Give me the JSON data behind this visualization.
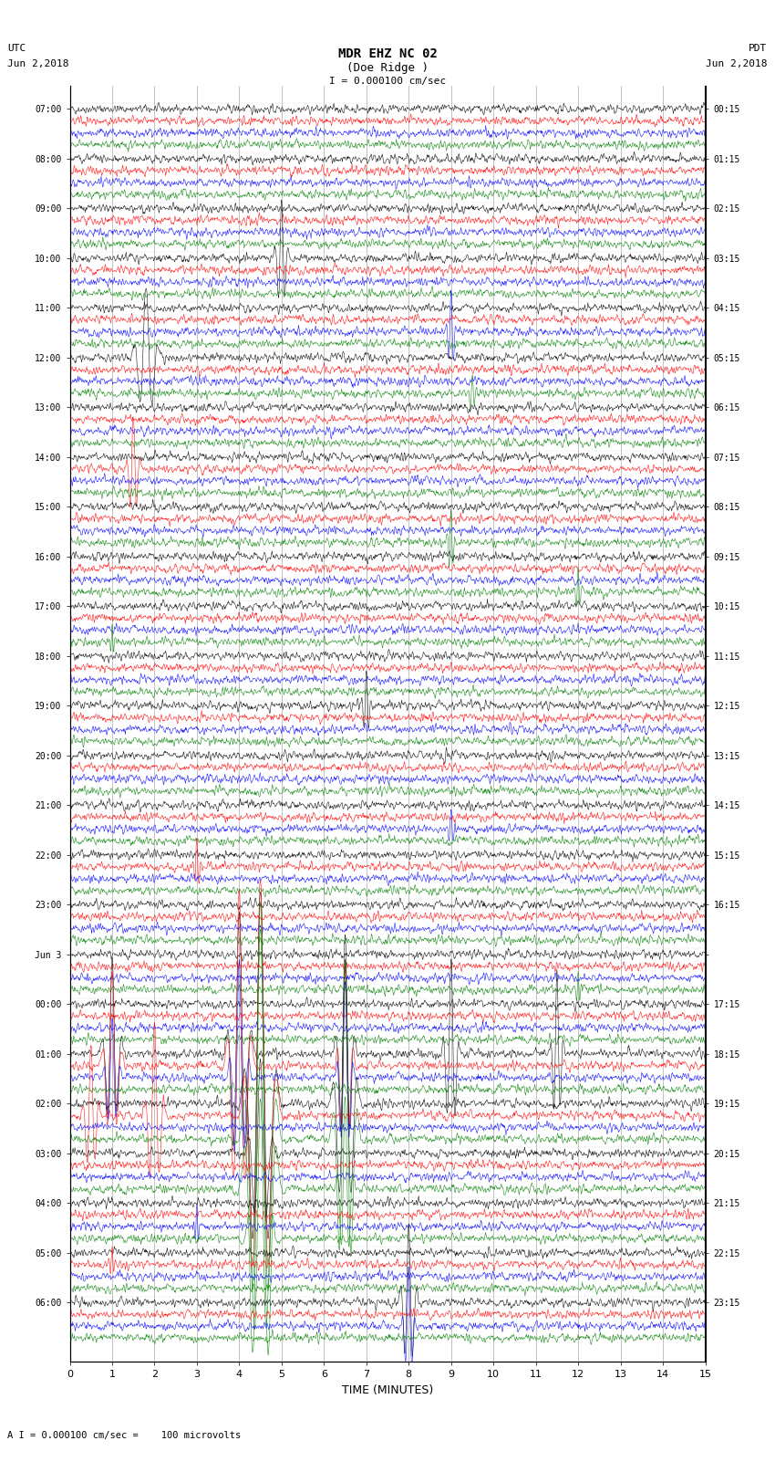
{
  "title_line1": "MDR EHZ NC 02",
  "title_line2": "(Doe Ridge )",
  "scale_text": "I = 0.000100 cm/sec",
  "utc_label": "UTC",
  "utc_date": "Jun 2,2018",
  "pdt_label": "PDT",
  "pdt_date": "Jun 2,2018",
  "xlabel": "TIME (MINUTES)",
  "footer_text": "A I = 0.000100 cm/sec =    100 microvolts",
  "time_min": 0,
  "time_max": 15,
  "num_rows": 46,
  "colors": [
    "black",
    "red",
    "blue",
    "green"
  ],
  "bg_color": "#ffffff",
  "line_color": "#888888",
  "left_times_utc": [
    "07:00",
    "08:00",
    "09:00",
    "10:00",
    "11:00",
    "12:00",
    "13:00",
    "14:00",
    "15:00",
    "16:00",
    "17:00",
    "18:00",
    "19:00",
    "20:00",
    "21:00",
    "22:00",
    "23:00",
    "Jun 3",
    "00:00",
    "01:00",
    "02:00",
    "03:00",
    "04:00",
    "05:00",
    "06:00"
  ],
  "right_times_pdt": [
    "00:15",
    "01:15",
    "02:15",
    "03:15",
    "04:15",
    "05:15",
    "06:15",
    "07:15",
    "08:15",
    "09:15",
    "10:15",
    "11:15",
    "12:15",
    "13:15",
    "14:15",
    "15:15",
    "16:15",
    "17:15",
    "18:15",
    "19:15",
    "20:15",
    "21:15",
    "22:15",
    "23:15"
  ],
  "noise_seed": 42,
  "noise_amplitude": 0.3,
  "event_amplitude": 2.5,
  "late_event_amplitude": 6.0
}
